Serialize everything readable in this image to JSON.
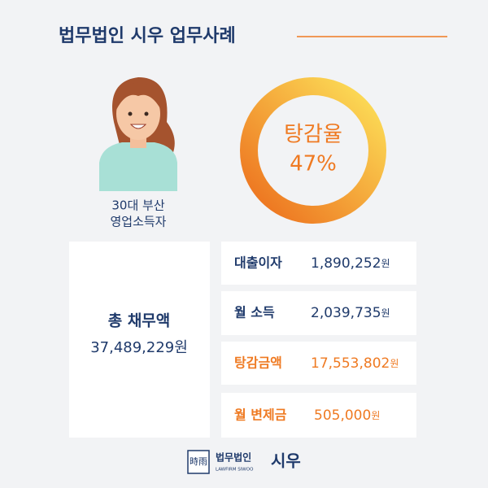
{
  "header": {
    "title": "법무법인 시우 업무사례"
  },
  "client": {
    "line1": "30대 부산",
    "line2": "영업소득자"
  },
  "rate": {
    "label": "탕감율",
    "value": "47%"
  },
  "total": {
    "label": "총 채무액",
    "amount": "37,489,229원"
  },
  "rows": [
    {
      "label": "대출이자",
      "amount": "1,890,252",
      "unit": "원"
    },
    {
      "label": "월 소득",
      "amount": "2,039,735",
      "unit": "원"
    },
    {
      "label": "탕감금액",
      "amount": "17,553,802",
      "unit": "원"
    },
    {
      "label": "월 변제금",
      "amount": "505,000",
      "unit": "원"
    }
  ],
  "footer": {
    "logo": "時雨",
    "firm": "법무법인",
    "english": "LAWFIRM SIWOO",
    "name": "시우"
  }
}
